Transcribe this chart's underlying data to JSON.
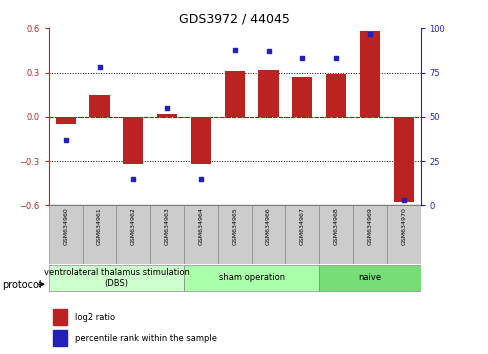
{
  "title": "GDS3972 / 44045",
  "samples": [
    "GSM634960",
    "GSM634961",
    "GSM634962",
    "GSM634963",
    "GSM634964",
    "GSM634965",
    "GSM634966",
    "GSM634967",
    "GSM634968",
    "GSM634969",
    "GSM634970"
  ],
  "log2_ratio": [
    -0.05,
    0.15,
    -0.32,
    0.02,
    -0.32,
    0.31,
    0.32,
    0.27,
    0.29,
    0.58,
    -0.58
  ],
  "percentile_rank": [
    37,
    78,
    15,
    55,
    15,
    88,
    87,
    83,
    83,
    97,
    3
  ],
  "bar_color": "#BB2222",
  "dot_color": "#2222BB",
  "ylim_left": [
    -0.6,
    0.6
  ],
  "ylim_right": [
    0,
    100
  ],
  "yticks_left": [
    -0.6,
    -0.3,
    0.0,
    0.3,
    0.6
  ],
  "yticks_right": [
    0,
    25,
    50,
    75,
    100
  ],
  "hline_color": "#CC0000",
  "dotted_color": "black",
  "groups": [
    {
      "label": "ventrolateral thalamus stimulation\n(DBS)",
      "start": 0,
      "end": 3,
      "color": "#ccffcc"
    },
    {
      "label": "sham operation",
      "start": 4,
      "end": 7,
      "color": "#aaffaa"
    },
    {
      "label": "naive",
      "start": 8,
      "end": 10,
      "color": "#77dd77"
    }
  ],
  "protocol_label": "protocol",
  "legend_red": "log2 ratio",
  "legend_blue": "percentile rank within the sample",
  "title_fontsize": 9,
  "tick_fontsize": 6,
  "sample_fontsize": 4.5,
  "group_fontsize": 6,
  "legend_fontsize": 6,
  "protocol_fontsize": 7
}
